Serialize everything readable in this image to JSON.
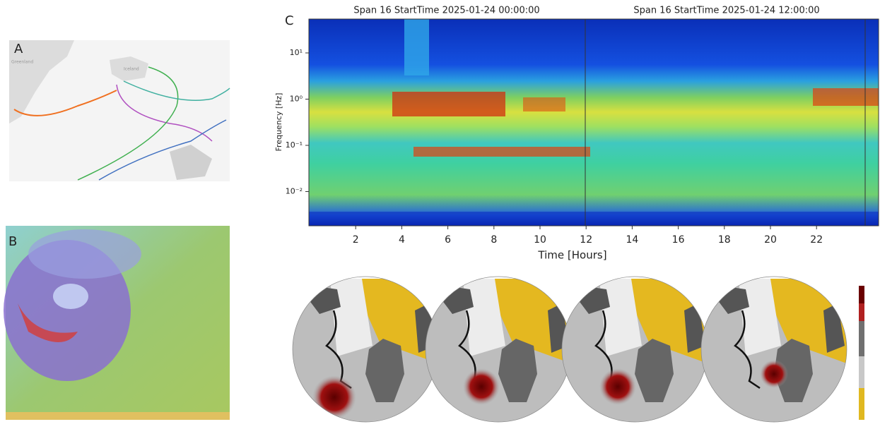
{
  "panels": {
    "a": {
      "label": "A",
      "places": [
        "Greenland",
        "Iceland"
      ]
    },
    "b": {
      "label": "B"
    },
    "c": {
      "label": "C",
      "titles": [
        "Span 16 StartTime 2025-01-24 00:00:00",
        "Span 16 StartTime 2025-01-24 12:00:00"
      ],
      "y_axis_label": "Frequency [Hz]",
      "y_ticks": [
        "10¹",
        "10⁰",
        "10⁻¹",
        "10⁻²"
      ],
      "x_axis_label": "Time [Hours]",
      "x_ticks": [
        2,
        4,
        6,
        8,
        10,
        12,
        14,
        16,
        18,
        20,
        22
      ]
    }
  }
}
